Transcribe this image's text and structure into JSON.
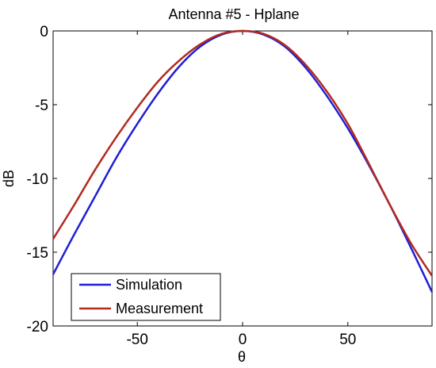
{
  "chart_data": {
    "type": "line",
    "title": "Antenna #5 - Hplane",
    "xlabel": "θ",
    "ylabel": "dB",
    "xlim": [
      -90,
      90
    ],
    "ylim": [
      -20,
      0
    ],
    "xticks": [
      -50,
      0,
      50
    ],
    "yticks": [
      0,
      -5,
      -10,
      -15,
      -20
    ],
    "xtick_labels": [
      "-50",
      "0",
      "50"
    ],
    "ytick_labels": [
      "0",
      "-5",
      "-10",
      "-15",
      "-20"
    ],
    "grid": false,
    "legend_position": "bottom-left",
    "series": [
      {
        "name": "Simulation",
        "color": "#1f1fd6",
        "x": [
          -90,
          -80,
          -70,
          -60,
          -50,
          -40,
          -30,
          -20,
          -10,
          0,
          10,
          20,
          30,
          40,
          50,
          60,
          70,
          80,
          90
        ],
        "y": [
          -16.5,
          -13.8,
          -11.2,
          -8.6,
          -6.3,
          -4.2,
          -2.4,
          -1.05,
          -0.25,
          0,
          -0.25,
          -1.05,
          -2.5,
          -4.4,
          -6.6,
          -9.1,
          -11.8,
          -14.7,
          -17.7
        ]
      },
      {
        "name": "Measurement",
        "color": "#b22a20",
        "x": [
          -90,
          -80,
          -70,
          -60,
          -50,
          -40,
          -30,
          -20,
          -10,
          0,
          10,
          20,
          30,
          40,
          50,
          60,
          70,
          80,
          90
        ],
        "y": [
          -14.1,
          -11.8,
          -9.4,
          -7.2,
          -5.2,
          -3.4,
          -2.0,
          -0.9,
          -0.2,
          0,
          -0.2,
          -0.95,
          -2.3,
          -4.1,
          -6.3,
          -9.0,
          -11.8,
          -14.4,
          -16.6
        ]
      }
    ]
  }
}
